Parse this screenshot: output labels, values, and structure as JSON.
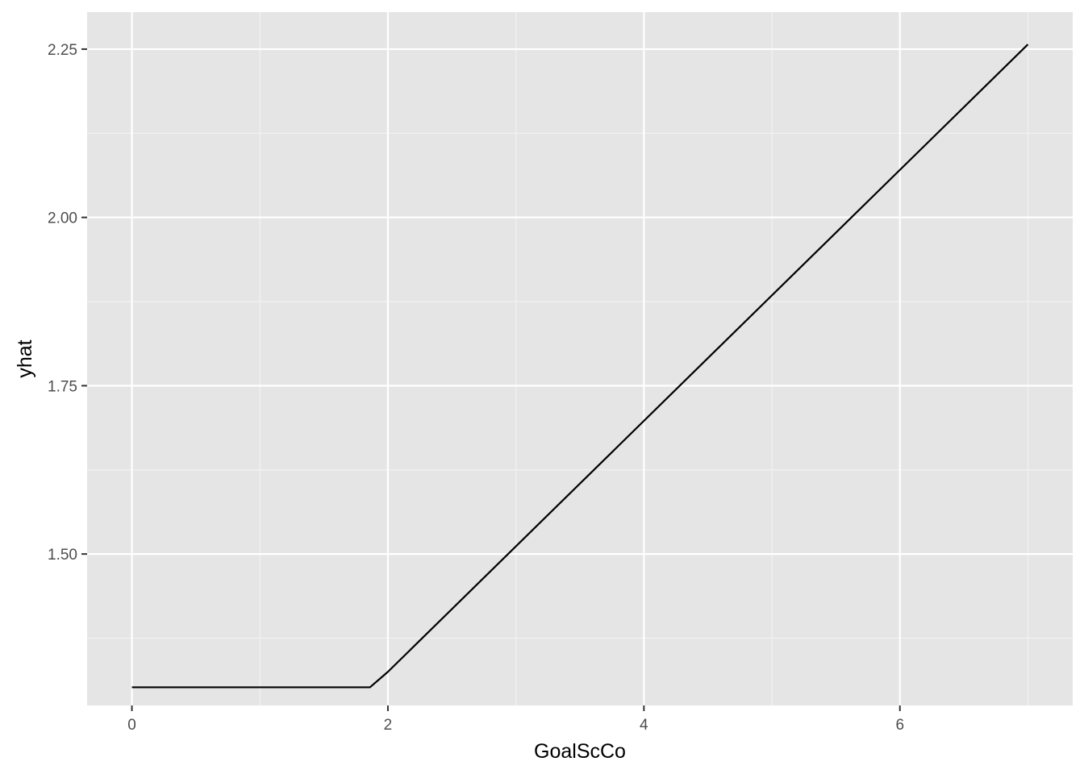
{
  "chart_data": {
    "type": "line",
    "xlabel": "GoalScCo",
    "ylabel": "yhat",
    "xlim": [
      -0.35,
      7.35
    ],
    "ylim": [
      1.275,
      2.305
    ],
    "x_ticks": [
      0,
      2,
      4,
      6
    ],
    "x_tick_labels": [
      "0",
      "2",
      "4",
      "6"
    ],
    "y_ticks": [
      1.5,
      1.75,
      2.0,
      2.25
    ],
    "y_tick_labels": [
      "1.50",
      "1.75",
      "2.00",
      "2.25"
    ],
    "grid": true,
    "legend": "none",
    "series": [
      {
        "x": [
          0,
          1.86,
          2.0,
          7.0
        ],
        "y": [
          1.302,
          1.302,
          1.325,
          2.257
        ]
      }
    ],
    "colors": {
      "panel": "#e5e5e5",
      "grid_major": "#ffffff",
      "grid_minor": "#f2f2f2",
      "line": "#000000",
      "tick": "#333333"
    }
  }
}
